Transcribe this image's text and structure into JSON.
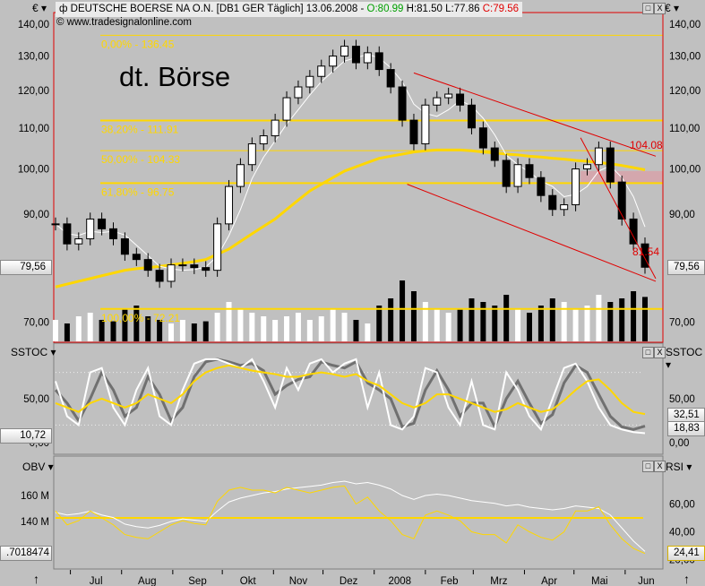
{
  "header": {
    "marker": "ф",
    "title": "DEUTSCHE BOERSE NA O.N. [DB1 GER  Täglich] 13.06.2008 - ",
    "open": "O:80.99",
    "high": "H:81.50",
    "low": "L:77.86",
    "close": "C:79.56",
    "open_color": "#00a000",
    "close_color": "#e00000"
  },
  "copyright": "© www.tradesignalonline.com",
  "chart_title": "dt. Börse",
  "panels": {
    "main_left": "€ ▾",
    "main_right": "€ ▾",
    "sstoc_left": "SSTOC ▾",
    "sstoc_right": "SSTOC ▾",
    "obv_left": "OBV ▾",
    "rsi_right": "RSI ▾"
  },
  "badges": {
    "price_left": "79,56",
    "price_right": "79,56",
    "sstoc_left": "10,72",
    "sstoc_right_1": "32,51",
    "sstoc_right_2": "18,83",
    "obv_left": ".7018474",
    "rsi_right": "24,41"
  },
  "window_buttons": {
    "maximize": "□",
    "close": "X"
  },
  "arrows": {
    "left": "↑",
    "right": "↑"
  },
  "colors": {
    "background": "#c0c0c0",
    "accent_yellow": "#ffd700",
    "trendline": "#e00000",
    "zone": "#d8a0a8"
  },
  "chart_data": [
    {
      "type": "candlestick",
      "scale": "log",
      "ylim": [
        67,
        145
      ],
      "yticks": [
        "140,00",
        "130,00",
        "120,00",
        "110,00",
        "100,00",
        "90,00",
        "70,00"
      ],
      "ytick_values": [
        140,
        130,
        120,
        110,
        100,
        90,
        70
      ],
      "x_labels": [
        "Jul",
        "Aug",
        "Sep",
        "Okt",
        "Nov",
        "Dez",
        "2008",
        "Feb",
        "Mrz",
        "Apr",
        "Mai",
        "Jun"
      ],
      "month_starts": [
        "2007-07-01",
        "2007-08-01",
        "2007-09-01",
        "2007-10-01",
        "2007-11-01",
        "2007-12-01",
        "2008-01-01",
        "2008-02-01",
        "2008-03-01",
        "2008-04-01",
        "2008-05-01",
        "2008-06-01"
      ],
      "dates": [
        "2007-06-22",
        "2007-06-29",
        "2007-07-06",
        "2007-07-13",
        "2007-07-20",
        "2007-07-27",
        "2007-08-03",
        "2007-08-10",
        "2007-08-17",
        "2007-08-24",
        "2007-08-31",
        "2007-09-07",
        "2007-09-14",
        "2007-09-21",
        "2007-09-28",
        "2007-10-05",
        "2007-10-12",
        "2007-10-19",
        "2007-10-26",
        "2007-11-02",
        "2007-11-09",
        "2007-11-16",
        "2007-11-23",
        "2007-11-30",
        "2007-12-07",
        "2007-12-14",
        "2007-12-21",
        "2007-12-28",
        "2008-01-04",
        "2008-01-11",
        "2008-01-18",
        "2008-01-25",
        "2008-02-01",
        "2008-02-08",
        "2008-02-15",
        "2008-02-22",
        "2008-02-29",
        "2008-03-07",
        "2008-03-14",
        "2008-03-21",
        "2008-03-28",
        "2008-04-04",
        "2008-04-11",
        "2008-04-18",
        "2008-04-25",
        "2008-05-02",
        "2008-05-09",
        "2008-05-16",
        "2008-05-23",
        "2008-05-30",
        "2008-06-06",
        "2008-06-13"
      ],
      "close": [
        88,
        84,
        85,
        89,
        87,
        85,
        82,
        81,
        79,
        77,
        80,
        80,
        79.5,
        79,
        88,
        96,
        101,
        106,
        108,
        112,
        118,
        121,
        124,
        127,
        130,
        133,
        128,
        131,
        126,
        121,
        112,
        106,
        116,
        118,
        119,
        116,
        110,
        105,
        102,
        96,
        101,
        98,
        94,
        91,
        92,
        100,
        101,
        105,
        97,
        89,
        84,
        79.56
      ],
      "ma200": [
        76,
        76.5,
        77,
        77.5,
        78,
        78.5,
        79,
        79.3,
        79.5,
        79.7,
        80,
        80.3,
        80.6,
        81,
        82,
        83,
        84.5,
        86,
        87.5,
        89,
        91,
        93,
        95,
        96.5,
        98,
        99.5,
        100.5,
        101.5,
        102.5,
        103,
        103.5,
        104,
        104.3,
        104.5,
        104.5,
        104.5,
        104.3,
        104,
        103.8,
        103.5,
        103.3,
        103,
        102.8,
        102.5,
        102.3,
        102,
        101.8,
        101.5,
        101.2,
        100.8,
        100.3,
        99.8
      ],
      "volume": [
        30,
        25,
        35,
        40,
        30,
        28,
        45,
        50,
        35,
        30,
        25,
        30,
        25,
        28,
        40,
        55,
        45,
        40,
        35,
        30,
        35,
        40,
        30,
        35,
        45,
        40,
        30,
        25,
        50,
        60,
        85,
        70,
        55,
        45,
        40,
        45,
        60,
        55,
        50,
        65,
        45,
        40,
        50,
        60,
        55,
        45,
        50,
        65,
        55,
        60,
        70,
        62
      ],
      "fibonacci": [
        {
          "label": "0,00% - 136.45",
          "value": 136.45
        },
        {
          "label": "38,20% - 111.91",
          "value": 111.91
        },
        {
          "label": "50,00% - 104.33",
          "value": 104.33
        },
        {
          "label": "61,80% - 96.75",
          "value": 96.75
        },
        {
          "label": "100,00% - 72.21",
          "value": 72.21
        }
      ],
      "trendlines": [
        {
          "from": [
            "2008-01-25",
            125
          ],
          "to": [
            "2008-06-13",
            103
          ],
          "label": "104.08"
        },
        {
          "from": [
            "2008-01-21",
            96.5
          ],
          "to": [
            "2008-06-13",
            77
          ]
        },
        {
          "from": [
            "2008-05-05",
            107.5
          ],
          "to": [
            "2008-06-13",
            77.5
          ],
          "label": "81.54"
        }
      ],
      "zone": {
        "from": "2008-05-05",
        "to": "2008-06-13",
        "low": 96.75,
        "high": 99.5
      }
    },
    {
      "type": "line",
      "name": "SSTOC",
      "ylim": [
        -5,
        120
      ],
      "yticks": [
        "50,00",
        "0,00"
      ],
      "ytick_values": [
        50,
        0
      ],
      "levels": [
        80,
        20
      ],
      "k": [
        70,
        30,
        20,
        80,
        85,
        40,
        20,
        60,
        85,
        30,
        20,
        60,
        90,
        95,
        95,
        90,
        85,
        95,
        70,
        40,
        85,
        60,
        90,
        95,
        80,
        90,
        95,
        40,
        80,
        20,
        15,
        30,
        85,
        80,
        40,
        20,
        70,
        20,
        15,
        80,
        60,
        30,
        15,
        50,
        85,
        90,
        70,
        40,
        20,
        15,
        12,
        10.72
      ],
      "d": [
        60,
        45,
        25,
        50,
        80,
        60,
        30,
        40,
        75,
        55,
        25,
        40,
        75,
        92,
        95,
        92,
        88,
        90,
        82,
        55,
        65,
        72,
        75,
        92,
        88,
        85,
        92,
        68,
        60,
        50,
        18,
        22,
        60,
        82,
        60,
        30,
        45,
        45,
        18,
        50,
        70,
        45,
        22,
        32,
        68,
        88,
        80,
        55,
        30,
        18,
        15,
        18.83
      ],
      "slow": [
        45,
        40,
        35,
        45,
        50,
        45,
        40,
        45,
        55,
        50,
        45,
        55,
        70,
        80,
        85,
        88,
        85,
        82,
        80,
        78,
        75,
        75,
        78,
        80,
        78,
        75,
        78,
        70,
        65,
        55,
        45,
        40,
        45,
        55,
        55,
        50,
        45,
        40,
        35,
        38,
        45,
        40,
        35,
        38,
        48,
        60,
        70,
        72,
        60,
        45,
        35,
        32.51
      ]
    },
    {
      "type": "line",
      "name": "OBV",
      "ylim_millions": [
        95,
        190
      ],
      "yticks": [
        "160 M",
        "140 M"
      ],
      "ytick_values": [
        160,
        140
      ],
      "obv_millions": [
        147,
        145,
        146,
        148,
        145,
        143,
        138,
        136,
        135,
        137,
        140,
        142,
        141,
        140,
        148,
        155,
        158,
        160,
        162,
        163,
        165,
        166,
        167,
        168,
        170,
        171,
        169,
        170,
        168,
        165,
        160,
        157,
        160,
        161,
        160,
        158,
        156,
        155,
        154,
        152,
        153,
        151,
        150,
        149,
        150,
        152,
        151,
        150,
        145,
        135,
        125,
        117.02
      ]
    },
    {
      "type": "line",
      "name": "RSI",
      "ylim": [
        10,
        90
      ],
      "yticks": [
        "60,00",
        "40,00",
        "20,00"
      ],
      "ytick_values": [
        60,
        40,
        20
      ],
      "level": 50,
      "rsi": [
        55,
        45,
        48,
        55,
        50,
        45,
        38,
        36,
        35,
        40,
        45,
        48,
        46,
        45,
        62,
        70,
        72,
        70,
        70,
        68,
        72,
        70,
        68,
        70,
        72,
        73,
        60,
        65,
        55,
        48,
        38,
        35,
        52,
        55,
        52,
        48,
        40,
        38,
        38,
        32,
        45,
        40,
        36,
        34,
        40,
        55,
        55,
        58,
        45,
        35,
        28,
        24.41
      ]
    }
  ]
}
